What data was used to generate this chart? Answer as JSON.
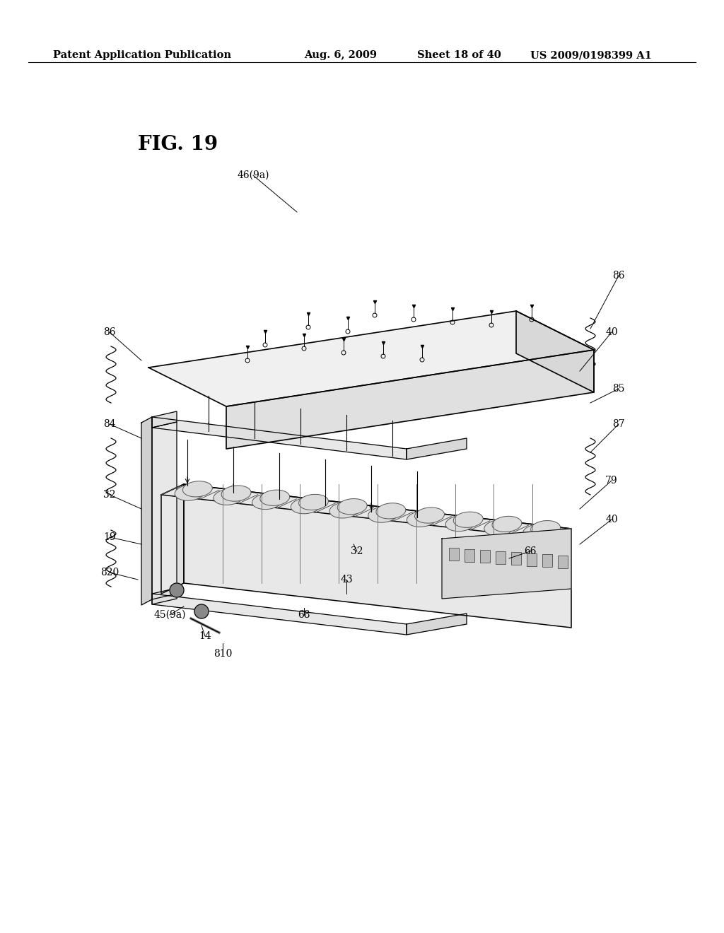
{
  "bg_color": "#ffffff",
  "page_width": 10.24,
  "page_height": 13.2,
  "header_text": "Patent Application Publication",
  "header_date": "Aug. 6, 2009",
  "header_sheet": "Sheet 18 of 40",
  "header_patent": "US 2009/0198399 A1",
  "figure_label": "FIG. 19",
  "header_fontsize": 10.5,
  "label_fontsize": 10,
  "fig_label_fontsize": 20
}
